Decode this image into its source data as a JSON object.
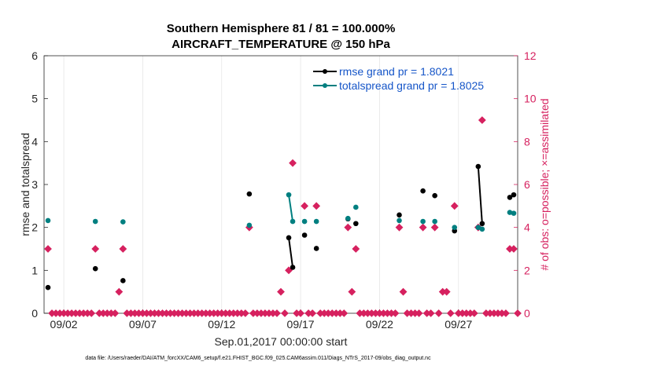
{
  "chart_data": {
    "type": "line",
    "title_line1": "Southern Hemisphere 81 / 81 = 100.000%",
    "title_line2": "AIRCRAFT_TEMPERATURE @ 150 hPa",
    "xlabel": "Sep.01,2017 00:00:00 start",
    "ylabel": "rmse and totalspread",
    "ylabel_right": "# of obs: o=possible; ×=assimilated",
    "x_tick_labels": [
      "09/02",
      "09/07",
      "09/12",
      "09/17",
      "09/22",
      "09/27"
    ],
    "x_ticks": [
      1,
      6,
      11,
      16,
      21,
      26
    ],
    "xlim": [
      -0.25,
      29.75
    ],
    "ylim": [
      0,
      6
    ],
    "y_ticks": [
      0,
      1,
      2,
      3,
      4,
      5,
      6
    ],
    "ylim_right": [
      0,
      12
    ],
    "y_ticks_right": [
      0,
      2,
      4,
      6,
      8,
      10,
      12
    ],
    "colors": {
      "rmse": "#000000",
      "spread": "#007f80",
      "obs": "#d6215f"
    },
    "legend": [
      {
        "name": "rmse grand pr = 1.8021",
        "color": "#000000"
      },
      {
        "name": "totalspread grand pr = 1.8025",
        "color": "#007f80"
      }
    ],
    "series": [
      {
        "name": "rmse",
        "x": [
          0,
          3,
          4.75,
          12.75,
          15.25,
          15.5,
          16.25,
          17,
          19,
          19.5,
          22.25,
          23.75,
          24.5,
          25.75,
          27.25,
          27.5,
          29.25,
          29.5
        ],
        "y": [
          0.6,
          1.04,
          0.76,
          2.78,
          1.76,
          1.07,
          1.82,
          1.51,
          2.2,
          2.09,
          2.29,
          2.85,
          2.74,
          1.92,
          3.42,
          2.09,
          2.7,
          2.76
        ],
        "segments": [
          [
            4,
            5
          ],
          [
            14,
            15
          ]
        ]
      },
      {
        "name": "totalspread",
        "x": [
          0,
          3,
          4.75,
          12.75,
          15.25,
          15.5,
          16.25,
          17,
          19,
          19.5,
          22.25,
          23.75,
          24.5,
          25.75,
          27.25,
          27.5,
          29.25,
          29.5
        ],
        "y": [
          2.16,
          2.14,
          2.13,
          2.05,
          2.76,
          2.14,
          2.14,
          2.14,
          2.21,
          2.47,
          2.16,
          2.14,
          2.14,
          2.0,
          2.0,
          1.96,
          2.35,
          2.33
        ],
        "segments": [
          [
            4,
            5
          ],
          [
            14,
            15
          ]
        ]
      }
    ],
    "obs_possible": {
      "x": [
        0,
        3,
        4.5,
        4.75,
        12.75,
        14.75,
        15.25,
        15.5,
        16.25,
        17,
        19,
        19.25,
        19.5,
        22.25,
        22.5,
        23.75,
        24.5,
        25,
        25.25,
        25.75,
        27.25,
        27.5,
        29.25,
        29.5
      ],
      "y": [
        3,
        3,
        1,
        3,
        4,
        1,
        2,
        7,
        5,
        5,
        4,
        1,
        3,
        4,
        1,
        4,
        4,
        1,
        1,
        5,
        4,
        9,
        3,
        3
      ]
    }
  },
  "footnote": "data file: /Users/raeder/DAI/ATM_forcXX/CAM6_setup/f.e21.FHIST_BGC.f09_025.CAM6assim.011/Diags_NTrS_2017-09/obs_diag_output.nc"
}
